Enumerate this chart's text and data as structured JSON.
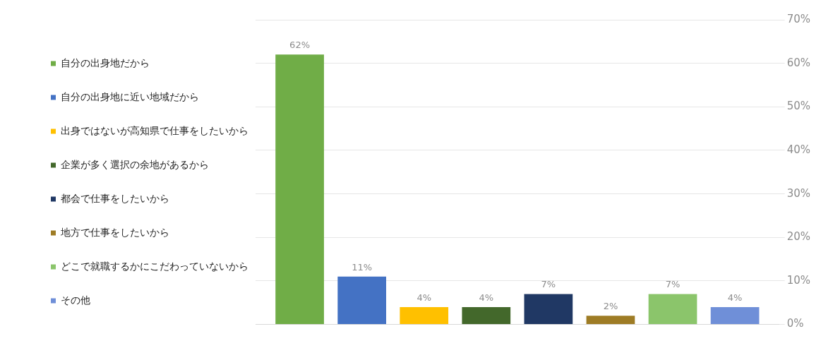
{
  "chart_data": {
    "type": "bar",
    "categories": [
      null
    ],
    "series": [
      {
        "name": "自分の出身地だから",
        "color": "#70ad47",
        "values": [
          62
        ],
        "value_labels": [
          "62%"
        ]
      },
      {
        "name": "自分の出身地に近い地域だから",
        "color": "#4472c4",
        "values": [
          11
        ],
        "value_labels": [
          "11%"
        ]
      },
      {
        "name": "出身ではないが高知県で仕事をしたいから",
        "color": "#ffc000",
        "values": [
          4
        ],
        "value_labels": [
          "4%"
        ]
      },
      {
        "name": "企業が多く選択の余地があるから",
        "color": "#43682b",
        "values": [
          4
        ],
        "value_labels": [
          "4%"
        ]
      },
      {
        "name": "都会で仕事をしたいから",
        "color": "#203864",
        "values": [
          7
        ],
        "value_labels": [
          "7%"
        ]
      },
      {
        "name": "地方で仕事をしたいから",
        "color": "#9e7c25",
        "values": [
          2
        ],
        "value_labels": [
          "2%"
        ]
      },
      {
        "name": "どこで就職するかにこだわっていないから",
        "color": "#8bc56b",
        "values": [
          7
        ],
        "value_labels": [
          "7%"
        ]
      },
      {
        "name": "その他",
        "color": "#6f8fd8",
        "values": [
          4
        ],
        "value_labels": [
          "4%"
        ]
      }
    ],
    "ylim": [
      0,
      70
    ],
    "yticks": [
      {
        "value": 0,
        "label": "0%"
      },
      {
        "value": 10,
        "label": "10%"
      },
      {
        "value": 20,
        "label": "20%"
      },
      {
        "value": 30,
        "label": "30%"
      },
      {
        "value": 40,
        "label": "40%"
      },
      {
        "value": 50,
        "label": "50%"
      },
      {
        "value": 60,
        "label": "60%"
      },
      {
        "value": 70,
        "label": "70%"
      }
    ],
    "grid": "y",
    "legend": "left"
  }
}
